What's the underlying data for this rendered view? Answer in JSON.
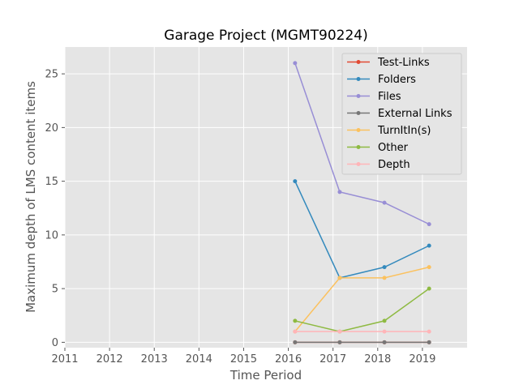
{
  "chart_data": {
    "type": "line",
    "title": "Garage Project (MGMT90224)",
    "xlabel": "Time Period",
    "ylabel": "Maximum depth of LMS content items",
    "x_ticks": [
      "2011",
      "2012",
      "2013",
      "2014",
      "2015",
      "2016",
      "2017",
      "2018",
      "2019"
    ],
    "y_ticks": [
      "0",
      "5",
      "10",
      "15",
      "20",
      "25"
    ],
    "xlim": [
      2011,
      2020
    ],
    "ylim": [
      -0.5,
      27.5
    ],
    "grid": true,
    "legend_position": "top-right",
    "x": [
      2016.15,
      2017.15,
      2018.15,
      2019.15
    ],
    "series": [
      {
        "name": "Test-Links",
        "color": "#E24A33",
        "values": [
          0,
          0,
          0,
          0
        ]
      },
      {
        "name": "Folders",
        "color": "#348ABD",
        "values": [
          15,
          6,
          7,
          9
        ]
      },
      {
        "name": "Files",
        "color": "#988ED5",
        "values": [
          26,
          14,
          13,
          11
        ]
      },
      {
        "name": "External Links",
        "color": "#777777",
        "values": [
          0,
          0,
          0,
          0
        ]
      },
      {
        "name": "TurnItIn(s)",
        "color": "#FBC15E",
        "values": [
          1,
          6,
          6,
          7
        ]
      },
      {
        "name": "Other",
        "color": "#8EBA42",
        "values": [
          2,
          1,
          2,
          5
        ]
      },
      {
        "name": "Depth",
        "color": "#FFB5B8",
        "values": [
          1,
          1,
          1,
          1
        ]
      }
    ]
  }
}
